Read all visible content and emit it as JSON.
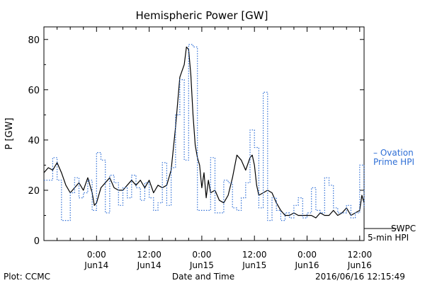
{
  "chart_data": {
    "type": "line",
    "title": "Hemispheric Power [GW]",
    "xlabel": "Date and Time",
    "ylabel": "P [GW]",
    "ylim": [
      0,
      85
    ],
    "yticks": [
      0,
      20,
      40,
      60,
      80
    ],
    "x_unit": "hours from 2016-06-13 12:00 UT",
    "xlim": [
      0,
      73
    ],
    "xticks": [
      {
        "x": 12,
        "line1": "0:00",
        "line2": "Jun14"
      },
      {
        "x": 24,
        "line1": "12:00",
        "line2": "Jun14"
      },
      {
        "x": 36,
        "line1": "0:00",
        "line2": "Jun15"
      },
      {
        "x": 48,
        "line1": "12:00",
        "line2": "Jun15"
      },
      {
        "x": 60,
        "line1": "0:00",
        "line2": "Jun16"
      },
      {
        "x": 72,
        "line1": "12:00",
        "line2": "Jun16"
      }
    ],
    "grid": false,
    "legend": [
      {
        "label_lines": [
          "– Ovation",
          "Prime HPI"
        ],
        "color": "#2f6fd6",
        "style": "dotted"
      },
      {
        "label_lines": [
          "SWPC",
          "5-min HPI"
        ],
        "color": "#000000",
        "style": "solid"
      }
    ],
    "series": [
      {
        "name": "SWPC 5-min HPI",
        "color": "#000000",
        "style": "solid",
        "x": [
          0,
          1,
          2,
          3,
          4,
          5,
          6,
          7,
          8,
          9,
          10,
          11,
          11.5,
          12,
          13,
          14,
          15,
          16,
          17,
          18,
          19,
          20,
          21,
          22,
          23,
          24,
          25,
          26,
          27,
          28,
          29,
          30,
          31,
          32,
          32.5,
          33,
          33.5,
          34,
          34.5,
          35,
          35.5,
          36,
          36.5,
          37,
          37.5,
          38,
          39,
          40,
          41,
          42,
          43,
          44,
          45,
          46,
          47,
          47.5,
          48,
          48.5,
          49,
          50,
          51,
          52,
          53,
          54,
          55,
          56,
          57,
          58,
          59,
          60,
          61,
          62,
          63,
          64,
          65,
          66,
          67,
          68,
          69,
          70,
          71,
          72,
          72.5,
          73
        ],
        "y": [
          27,
          29,
          28,
          31,
          27,
          22,
          19,
          21,
          23,
          20,
          25,
          19,
          14,
          15,
          21,
          23,
          25,
          21,
          20,
          20,
          22,
          24,
          22,
          24,
          21,
          24,
          19,
          22,
          21,
          22,
          28,
          45,
          65,
          70,
          77,
          76,
          66,
          50,
          38,
          33,
          30,
          21,
          27,
          17,
          24,
          19,
          20,
          16,
          15,
          18,
          25,
          34,
          32,
          28,
          33,
          34,
          30,
          22,
          18,
          19,
          20,
          19,
          15,
          12,
          10,
          10,
          11,
          10,
          10,
          10,
          10,
          9,
          11,
          10,
          10,
          12,
          10,
          11,
          13,
          10,
          11,
          12,
          18,
          15
        ]
      },
      {
        "name": "Ovation Prime HPI",
        "color": "#2f6fd6",
        "style": "dotted",
        "x": [
          0,
          1,
          2,
          3,
          4,
          5,
          6,
          7,
          8,
          9,
          10,
          11,
          12,
          13,
          14,
          15,
          16,
          17,
          18,
          19,
          20,
          21,
          22,
          23,
          24,
          25,
          26,
          27,
          28,
          29,
          30,
          31,
          32,
          33,
          34,
          35,
          36,
          37,
          38,
          39,
          40,
          41,
          42,
          43,
          44,
          45,
          46,
          47,
          48,
          49,
          50,
          51,
          52,
          53,
          54,
          55,
          56,
          57,
          58,
          59,
          60,
          61,
          62,
          63,
          64,
          65,
          66,
          67,
          68,
          69,
          70,
          71,
          72,
          73
        ],
        "y": [
          24,
          24,
          33,
          24,
          8,
          8,
          19,
          25,
          17,
          19,
          24,
          12,
          35,
          32,
          11,
          26,
          23,
          14,
          21,
          17,
          26,
          21,
          16,
          23,
          17,
          12,
          15,
          31,
          14,
          29,
          50,
          64,
          32,
          78,
          77,
          12,
          12,
          12,
          33,
          11,
          11,
          24,
          23,
          13,
          12,
          17,
          23,
          44,
          37,
          13,
          59,
          8,
          17,
          12,
          8,
          11,
          9,
          14,
          17,
          9,
          11,
          21,
          12,
          11,
          25,
          22,
          13,
          11,
          11,
          14,
          9,
          11,
          30,
          13
        ]
      }
    ]
  },
  "footer": {
    "plot_source": "Plot: CCMC",
    "timestamp": "2016/06/16 12:15:49"
  }
}
